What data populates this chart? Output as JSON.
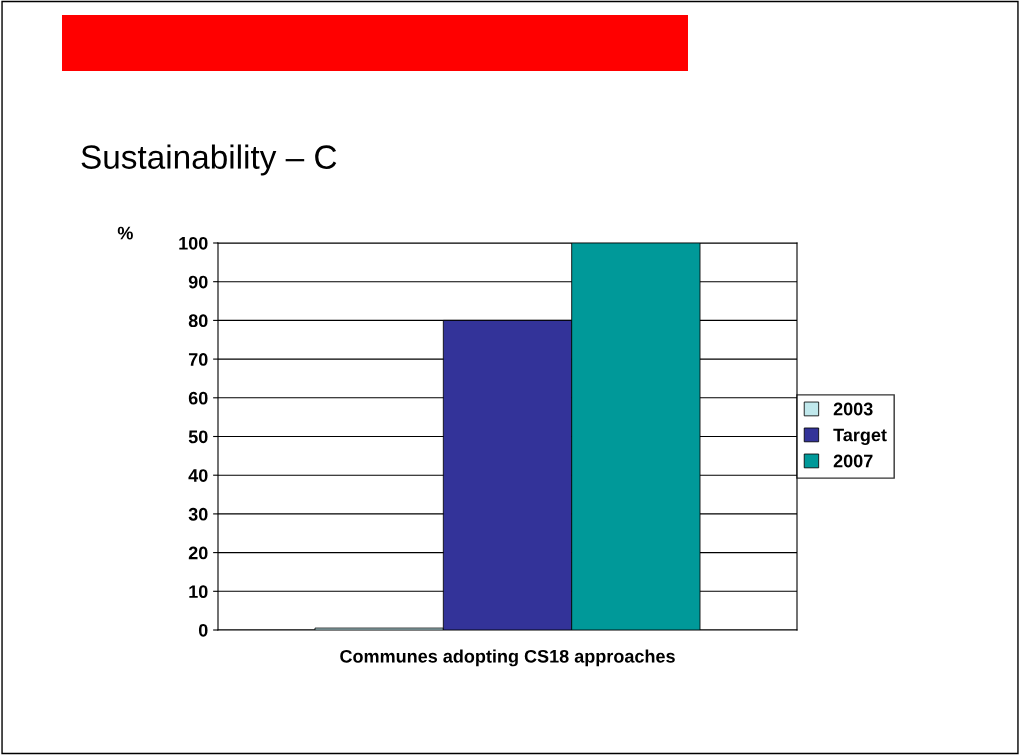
{
  "chart_data": {
    "type": "bar",
    "title": "Sustainability – C",
    "ylabel": "%",
    "categories": [
      "Communes adopting CS18 approaches"
    ],
    "series": [
      {
        "name": "2003",
        "color": "#c0e8ec",
        "values": [
          0.5
        ]
      },
      {
        "name": "Target",
        "color": "#333399",
        "values": [
          80
        ]
      },
      {
        "name": "2007",
        "color": "#009999",
        "values": [
          100
        ]
      }
    ],
    "ylim": [
      0,
      100
    ],
    "yticks": [
      0,
      10,
      20,
      30,
      40,
      50,
      60,
      70,
      80,
      90,
      100
    ],
    "grid": "y",
    "legend": "right"
  }
}
